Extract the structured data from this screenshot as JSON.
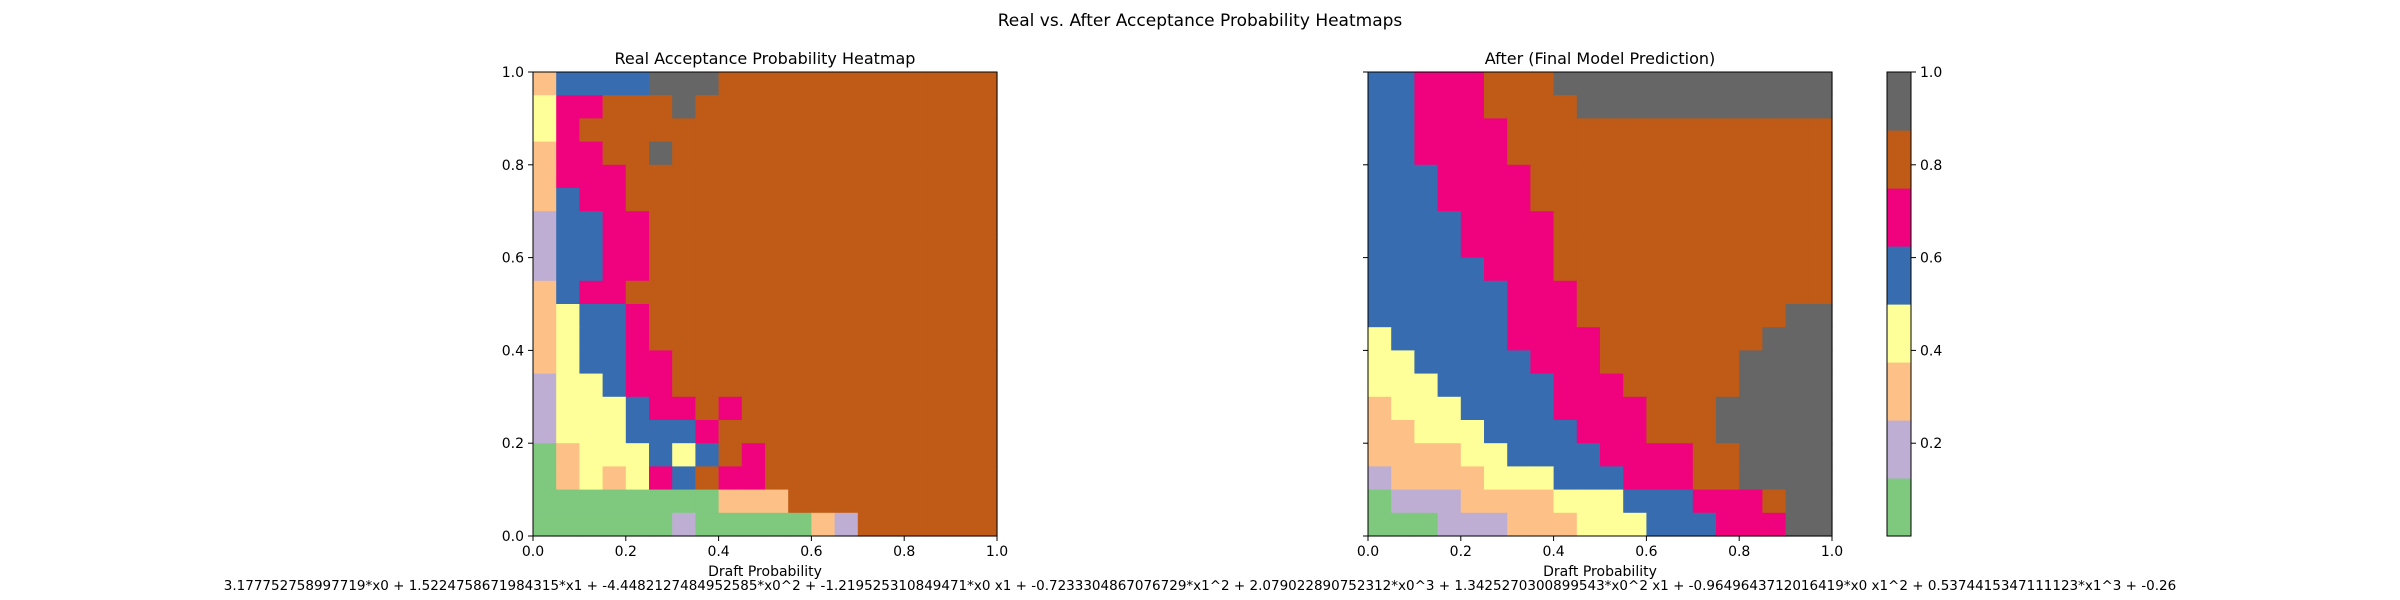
{
  "figure": {
    "title": "Real vs. After Acceptance Probability Heatmaps",
    "formula": "3.177752758997719*x0 + 1.5224758671984315*x1 + -4.4482127484952585*x0^2 + -1.219525310849471*x0 x1 + -0.7233304867076729*x1^2 + 2.079022890752312*x0^3 + 1.3425270300899543*x0^2 x1 + -0.9649643712016419*x0 x1^2 + 0.5374415347111123*x1^3 + -0.26"
  },
  "colorbar": {
    "ticks": [
      "0.2",
      "0.4",
      "0.6",
      "0.8",
      "1.0"
    ],
    "tick_values": [
      0.2,
      0.4,
      0.6,
      0.8,
      1.0
    ],
    "range": [
      0.0,
      1.0
    ],
    "colors": [
      "#7fc97f",
      "#beaed4",
      "#fdc086",
      "#ffff99",
      "#386cb0",
      "#f0027f",
      "#bf5b17",
      "#666666"
    ]
  },
  "chart_data": [
    {
      "type": "heatmap",
      "title": "Real Acceptance Probability Heatmap",
      "xlabel": "Draft Probability",
      "ylabel": "",
      "xlim": [
        0.0,
        1.0
      ],
      "ylim": [
        0.0,
        1.0
      ],
      "x_ticks": [
        "0.0",
        "0.2",
        "0.4",
        "0.6",
        "0.8",
        "1.0"
      ],
      "y_ticks": [
        "0.0",
        "0.2",
        "0.4",
        "0.6",
        "0.8",
        "1.0"
      ],
      "grid_resolution": 20,
      "value_scale": "0-7 = color class index of 8 equal bins over [0,1]",
      "rows_top_to_bottom": [
        "24444777666666666666",
        "35566676666666666666",
        "35666666666666666666",
        "25566766666666666666",
        "25556666666666666666",
        "24556666666666666666",
        "14455666666666666666",
        "14455666666666666666",
        "14455666666666666666",
        "24556666666666666666",
        "23445666666666666666",
        "23445666666666666666",
        "23445566666666666666",
        "13345566666666666666",
        "13334556566666666666",
        "13334445666666666666",
        "02333434656666666666",
        "02323546556666666666",
        "00000000222666666666",
        "00000010000021666666"
      ]
    },
    {
      "type": "heatmap",
      "title": "After (Final Model Prediction)",
      "xlabel": "Draft Probability",
      "ylabel": "",
      "xlim": [
        0.0,
        1.0
      ],
      "ylim": [
        0.0,
        1.0
      ],
      "x_ticks": [
        "0.0",
        "0.2",
        "0.4",
        "0.6",
        "0.8",
        "1.0"
      ],
      "y_ticks": [
        "",
        "",
        "",
        "",
        "",
        ""
      ],
      "grid_resolution": 20,
      "value_scale": "0-7 = color class index of 8 equal bins over [0,1]",
      "rows_top_to_bottom": [
        "44555666777777777777",
        "44555666677777777777",
        "44555566666666666666",
        "44555566666666666666",
        "44455556666666666666",
        "44455556666666666666",
        "44445555666666666666",
        "44445555666666666666",
        "44444555666666666666",
        "44444455566666666666",
        "44444455566666666677",
        "34444455556666666777",
        "33444445556666667777",
        "33344444555666667777",
        "23334444555566677777",
        "22333444455566677777",
        "22223344445555667777",
        "12222333444555667777",
        "01112222333444555677",
        "00011122233344455577"
      ]
    }
  ]
}
